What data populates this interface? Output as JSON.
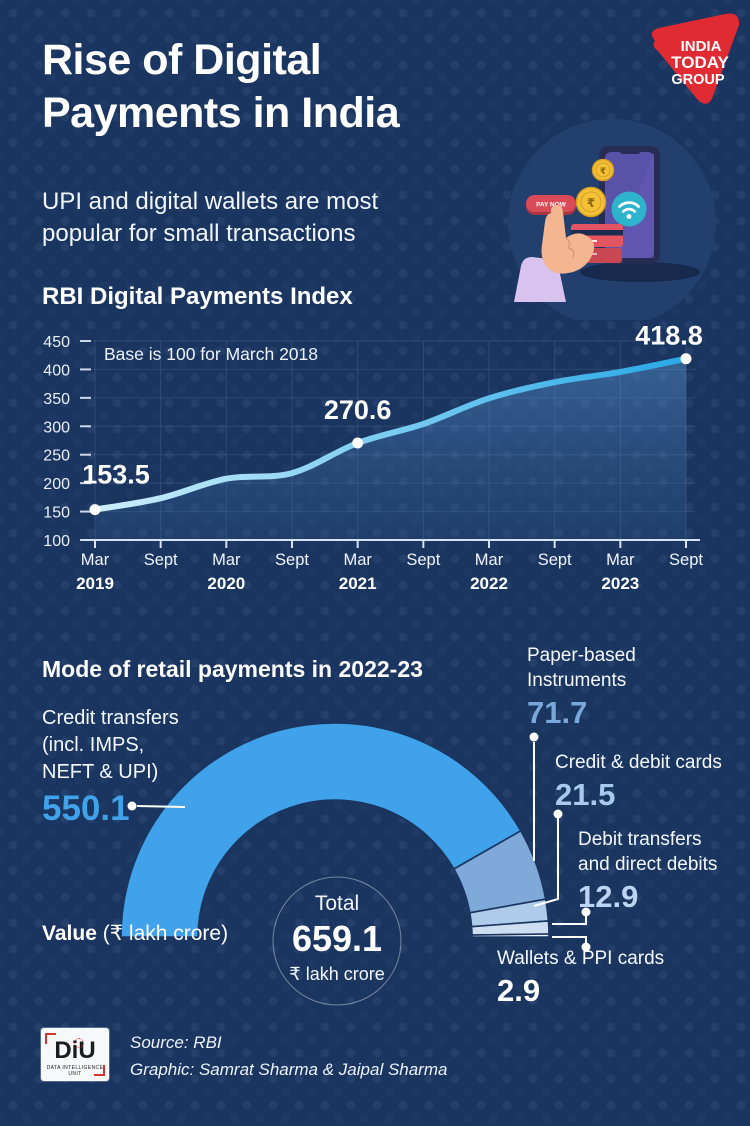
{
  "page": {
    "background": "#1a355f",
    "accent_red": "#e02b33",
    "line_blue": "#29abe2"
  },
  "logo": {
    "lines": [
      "INDIA",
      "TODAY",
      "GROUP"
    ]
  },
  "header": {
    "title_line1": "Rise of Digital",
    "title_line2": "Payments in India",
    "subtitle_line1": "UPI and digital wallets are most",
    "subtitle_line2": "popular for small transactions"
  },
  "illustration": {
    "pay_button": "PAY NOW",
    "coin_symbol": "₹"
  },
  "line_section": {
    "heading": "RBI Digital Payments Index",
    "note": "Base is 100 for March 2018"
  },
  "donut_section": {
    "heading": "Mode of retail payments in 2022-23",
    "value_label_bold": "Value",
    "value_label_rest": " (₹ lakh crore)",
    "center": {
      "label": "Total",
      "value": "659.1",
      "unit": "₹ lakh crore"
    },
    "labels": {
      "credit": {
        "l1": "Credit transfers",
        "l2": "(incl. IMPS,",
        "l3": "NEFT & UPI)",
        "value": "550.1",
        "value_color": "#3fa2ea"
      },
      "paper": {
        "l1": "Paper-based",
        "l2": "Instruments",
        "value": "71.7",
        "value_color": "#79a8dc"
      },
      "cards": {
        "l1": "Credit & debit cards",
        "value": "21.5",
        "value_color": "#a9c9ee"
      },
      "debit": {
        "l1": "Debit transfers",
        "l2": "and direct debits",
        "value": "12.9",
        "value_color": "#bdd5f2"
      },
      "wallets": {
        "l1": "Wallets & PPI cards",
        "value": "2.9",
        "value_color": "#ffffff"
      }
    }
  },
  "footer": {
    "source": "Source: RBI",
    "credit": "Graphic: Samrat Sharma & Jaipal Sharma",
    "diu": {
      "name": "DiU",
      "caption": "DATA INTELLIGENCE UNIT"
    }
  },
  "chart_data": [
    {
      "type": "area",
      "title": "RBI Digital Payments Index",
      "annotation": "Base is 100 for March 2018",
      "x": [
        "Mar 2019",
        "Sept 2019",
        "Mar 2020",
        "Sept 2020",
        "Mar 2021",
        "Sept 2021",
        "Mar 2022",
        "Sept 2022",
        "Mar 2023",
        "Sept 2023"
      ],
      "x_tick_top": [
        "Mar",
        "Sept",
        "Mar",
        "Sept",
        "Mar",
        "Sept",
        "Mar",
        "Sept",
        "Mar",
        "Sept"
      ],
      "x_tick_year": [
        "2019",
        "",
        "2020",
        "",
        "2021",
        "",
        "2022",
        "",
        "2023",
        ""
      ],
      "values": [
        153.5,
        173.5,
        207.8,
        217.7,
        270.6,
        304.1,
        349.3,
        377.5,
        395.6,
        418.8
      ],
      "labeled_points": [
        {
          "index": 0,
          "label": "153.5"
        },
        {
          "index": 4,
          "label": "270.6"
        },
        {
          "index": 9,
          "label": "418.8"
        }
      ],
      "ylim": [
        100,
        450
      ],
      "yticks": [
        450,
        400,
        350,
        300,
        250,
        200,
        150,
        100
      ],
      "grid": true,
      "legend": "none",
      "line_gradient": [
        "#cdeefb",
        "#27a9e6"
      ],
      "area_gradient": [
        "rgba(95,158,222,0.42)",
        "rgba(60,110,170,0.16)"
      ]
    },
    {
      "type": "pie",
      "shape": "semi-donut",
      "title": "Mode of retail payments in 2022-23",
      "unit": "₹ lakh crore",
      "total": 659.1,
      "segments": [
        {
          "label": "Credit transfers (incl. IMPS, NEFT & UPI)",
          "value": 550.1,
          "color": "#3fa2ea"
        },
        {
          "label": "Paper-based Instruments",
          "value": 71.7,
          "color": "#7fa9d8"
        },
        {
          "label": "Credit & debit cards",
          "value": 21.5,
          "color": "#aecbea"
        },
        {
          "label": "Debit transfers and direct debits",
          "value": 12.9,
          "color": "#cdddf2"
        },
        {
          "label": "Wallets & PPI cards",
          "value": 2.9,
          "color": "#eef4fb"
        }
      ]
    }
  ]
}
